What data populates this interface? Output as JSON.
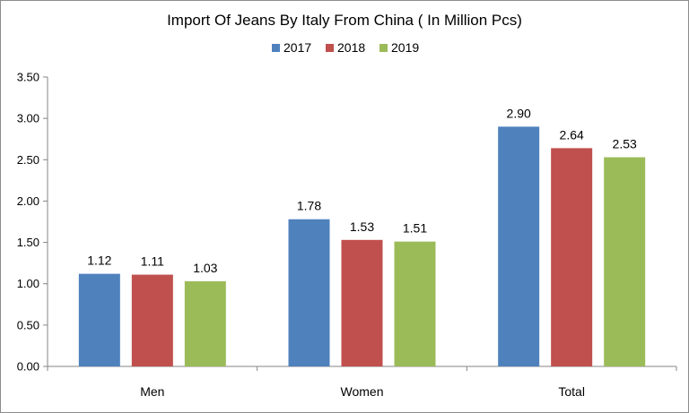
{
  "chart_data": {
    "type": "bar",
    "title": "Import Of Jeans By Italy From China ( In Million Pcs)",
    "categories": [
      "Men",
      "Women",
      "Total"
    ],
    "series": [
      {
        "name": "2017",
        "color": "#4f81bd",
        "values": [
          1.12,
          1.78,
          2.9
        ]
      },
      {
        "name": "2018",
        "color": "#c0504d",
        "values": [
          1.11,
          1.53,
          2.64
        ]
      },
      {
        "name": "2019",
        "color": "#9bbb59",
        "values": [
          1.03,
          1.51,
          2.53
        ]
      }
    ],
    "ylim": [
      0,
      3.5
    ],
    "yticks": [
      "0.00",
      "0.50",
      "1.00",
      "1.50",
      "2.00",
      "2.50",
      "3.00",
      "3.50"
    ],
    "data_labels": [
      [
        "1.12",
        "1.78",
        "2.90"
      ],
      [
        "1.11",
        "1.53",
        "2.64"
      ],
      [
        "1.03",
        "1.51",
        "2.53"
      ]
    ],
    "legend_position": "top",
    "grid": false
  }
}
